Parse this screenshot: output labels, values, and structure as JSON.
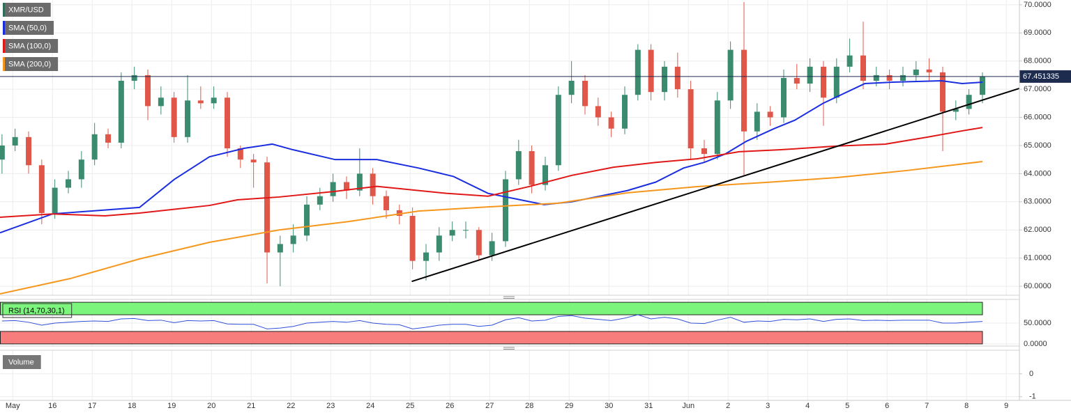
{
  "chart_data": {
    "type": "candlestick",
    "xlim": [
      -0.32,
      25.33
    ],
    "xticks": [
      {
        "value": 0,
        "label": "May"
      },
      {
        "value": 1,
        "label": "16"
      },
      {
        "value": 2,
        "label": "17"
      },
      {
        "value": 3,
        "label": "18"
      },
      {
        "value": 4,
        "label": "19"
      },
      {
        "value": 5,
        "label": "20"
      },
      {
        "value": 6,
        "label": "21"
      },
      {
        "value": 7,
        "label": "22"
      },
      {
        "value": 8,
        "label": "23"
      },
      {
        "value": 9,
        "label": "24"
      },
      {
        "value": 10,
        "label": "25"
      },
      {
        "value": 11,
        "label": "26"
      },
      {
        "value": 12,
        "label": "27"
      },
      {
        "value": 13,
        "label": "28"
      },
      {
        "value": 14,
        "label": "29"
      },
      {
        "value": 15,
        "label": "30"
      },
      {
        "value": 16,
        "label": "31"
      },
      {
        "value": 17,
        "label": "Jun"
      },
      {
        "value": 18,
        "label": "2"
      },
      {
        "value": 19,
        "label": "3"
      },
      {
        "value": 20,
        "label": "4"
      },
      {
        "value": 21,
        "label": "5"
      },
      {
        "value": 22,
        "label": "6"
      },
      {
        "value": 23,
        "label": "7"
      },
      {
        "value": 24,
        "label": "8"
      },
      {
        "value": 25,
        "label": "9"
      }
    ],
    "x": [
      -0.27,
      0.06,
      0.4,
      0.73,
      1.06,
      1.4,
      1.73,
      2.06,
      2.4,
      2.73,
      3.06,
      3.4,
      3.73,
      4.06,
      4.4,
      4.73,
      5.06,
      5.4,
      5.73,
      6.06,
      6.4,
      6.73,
      7.06,
      7.4,
      7.73,
      8.06,
      8.4,
      8.73,
      9.06,
      9.4,
      9.73,
      10.06,
      10.4,
      10.73,
      11.06,
      11.4,
      11.73,
      12.06,
      12.4,
      12.73,
      13.06,
      13.4,
      13.73,
      14.06,
      14.4,
      14.73,
      15.06,
      15.4,
      15.73,
      16.06,
      16.4,
      16.73,
      17.06,
      17.4,
      17.73,
      18.06,
      18.4,
      18.73,
      19.06,
      19.4,
      19.73,
      20.06,
      20.4,
      20.73,
      21.06,
      21.4,
      21.73,
      22.06,
      22.4,
      22.73,
      23.06,
      23.4,
      23.73,
      24.06,
      24.4
    ],
    "ylim": [
      59.68,
      70.17
    ],
    "yticks": [
      {
        "value": 60,
        "label": "60.0000"
      },
      {
        "value": 61,
        "label": "61.0000"
      },
      {
        "value": 62,
        "label": "62.0000"
      },
      {
        "value": 63,
        "label": "63.0000"
      },
      {
        "value": 64,
        "label": "64.0000"
      },
      {
        "value": 65,
        "label": "65.0000"
      },
      {
        "value": 66,
        "label": "66.0000"
      },
      {
        "value": 67,
        "label": "67.0000"
      },
      {
        "value": 68,
        "label": "68.0000"
      },
      {
        "value": 69,
        "label": "69.0000"
      },
      {
        "value": 70,
        "label": "70.0000"
      }
    ],
    "grid": true,
    "series": [
      {
        "name": "XMR/USD",
        "color": "#2f6e5a",
        "up_color": "#3b8c6e",
        "down_color": "#e0574a",
        "open": [
          64.5,
          65.0,
          65.3,
          64.3,
          62.6,
          63.5,
          63.8,
          64.5,
          65.4,
          65.1,
          67.3,
          67.5,
          66.4,
          66.7,
          65.3,
          66.6,
          66.5,
          66.7,
          64.9,
          64.5,
          64.4,
          61.2,
          61.5,
          61.8,
          62.9,
          63.2,
          63.7,
          63.4,
          64.0,
          63.2,
          62.7,
          62.5,
          60.9,
          61.2,
          61.8,
          62.0,
          62.0,
          61.1,
          61.6,
          63.8,
          64.8,
          63.6,
          64.3,
          66.8,
          67.3,
          66.4,
          66.0,
          65.6,
          66.8,
          68.4,
          66.9,
          67.8,
          67.0,
          64.9,
          64.7,
          66.6,
          68.4,
          65.5,
          66.2,
          66.0,
          67.4,
          67.2,
          67.8,
          66.7,
          67.8,
          68.2,
          67.3,
          67.5,
          67.3,
          67.5,
          67.7,
          67.6,
          66.2,
          66.3,
          66.8
        ],
        "high": [
          65.4,
          65.6,
          65.5,
          64.5,
          63.8,
          64.1,
          64.8,
          65.8,
          65.6,
          67.6,
          67.8,
          67.7,
          67.1,
          66.9,
          67.5,
          67.1,
          67.1,
          66.9,
          65.0,
          64.7,
          64.6,
          61.8,
          62.2,
          63.2,
          63.5,
          64.0,
          63.9,
          64.9,
          64.2,
          63.4,
          62.9,
          62.8,
          61.5,
          62.1,
          62.3,
          62.3,
          62.1,
          61.9,
          64.1,
          65.2,
          65.0,
          64.6,
          67.1,
          68.0,
          67.5,
          66.7,
          66.2,
          67.1,
          68.6,
          68.6,
          68.0,
          68.3,
          67.3,
          65.2,
          66.9,
          68.7,
          70.1,
          66.5,
          66.4,
          67.7,
          67.9,
          68.1,
          68.0,
          68.1,
          68.8,
          69.4,
          67.8,
          67.7,
          67.8,
          68.0,
          68.1,
          67.8,
          66.6,
          67.0,
          67.6
        ],
        "low": [
          64.0,
          64.8,
          64.0,
          62.2,
          62.4,
          63.3,
          63.5,
          64.3,
          64.9,
          64.9,
          67.0,
          65.9,
          66.1,
          65.1,
          65.1,
          66.3,
          66.3,
          64.6,
          64.2,
          63.5,
          60.1,
          60.0,
          61.2,
          61.6,
          62.7,
          63.0,
          63.1,
          63.2,
          62.9,
          62.4,
          62.2,
          60.6,
          60.2,
          60.9,
          61.6,
          61.7,
          60.9,
          60.9,
          61.4,
          63.6,
          63.3,
          63.4,
          64.1,
          66.5,
          66.1,
          65.7,
          65.3,
          65.4,
          66.6,
          66.6,
          66.6,
          66.7,
          64.5,
          64.4,
          64.5,
          66.3,
          63.9,
          65.2,
          65.7,
          65.8,
          67.0,
          66.9,
          65.7,
          66.5,
          67.6,
          67.0,
          67.1,
          67.0,
          67.1,
          67.3,
          67.3,
          64.8,
          65.9,
          66.1,
          66.5
        ],
        "close": [
          65.0,
          65.3,
          64.3,
          62.6,
          63.5,
          63.8,
          64.5,
          65.4,
          65.1,
          67.3,
          67.5,
          66.4,
          66.7,
          65.3,
          66.6,
          66.5,
          66.7,
          64.9,
          64.5,
          64.4,
          61.2,
          61.5,
          61.8,
          62.9,
          63.2,
          63.7,
          63.4,
          64.0,
          63.2,
          62.7,
          62.5,
          60.9,
          61.2,
          61.8,
          62.0,
          62.0,
          61.1,
          61.6,
          63.8,
          64.8,
          63.6,
          64.3,
          66.8,
          67.3,
          66.4,
          66.0,
          65.6,
          66.8,
          68.4,
          66.9,
          67.8,
          67.0,
          64.9,
          64.7,
          66.6,
          68.4,
          65.5,
          66.2,
          66.0,
          67.4,
          67.2,
          67.8,
          66.7,
          67.8,
          68.2,
          67.3,
          67.5,
          67.3,
          67.5,
          67.7,
          67.6,
          66.2,
          66.3,
          66.8,
          67.45
        ]
      },
      {
        "name": "SMA (50,0)",
        "color": "#1a2ee0",
        "x": [
          -0.32,
          1.0,
          3.19,
          4.07,
          4.95,
          5.82,
          6.53,
          7.05,
          8.11,
          9.16,
          10.21,
          11.09,
          11.96,
          12.67,
          13.37,
          14.07,
          14.77,
          15.47,
          16.18,
          16.88,
          17.4,
          17.93,
          18.46,
          19.16,
          19.68,
          20.39,
          21.44,
          22.14,
          23.37,
          23.89,
          24.4
        ],
        "values": [
          61.9,
          62.57,
          62.8,
          63.8,
          64.6,
          64.9,
          65.05,
          64.85,
          64.5,
          64.5,
          64.2,
          63.9,
          63.3,
          63.1,
          62.9,
          63.0,
          63.2,
          63.4,
          63.7,
          64.2,
          64.4,
          64.7,
          65.15,
          65.6,
          65.9,
          66.5,
          67.2,
          67.25,
          67.3,
          67.2,
          67.25
        ]
      },
      {
        "name": "SMA (100,0)",
        "color": "#e01818",
        "x": [
          -0.32,
          1.0,
          2.32,
          3.19,
          4.95,
          5.65,
          6.7,
          8.11,
          9.16,
          9.86,
          10.91,
          11.96,
          13.02,
          14.07,
          15.12,
          16.18,
          17.23,
          18.28,
          19.33,
          20.74,
          21.96,
          23.02,
          23.89,
          24.4
        ],
        "values": [
          62.45,
          62.57,
          62.5,
          62.6,
          62.87,
          63.07,
          63.17,
          63.37,
          63.55,
          63.45,
          63.3,
          63.2,
          63.55,
          63.94,
          64.23,
          64.4,
          64.53,
          64.78,
          64.85,
          64.98,
          65.05,
          65.3,
          65.52,
          65.64
        ]
      },
      {
        "name": "SMA (200,0)",
        "color": "#f5971d",
        "x": [
          -0.32,
          1.44,
          3.19,
          4.95,
          6.7,
          8.46,
          10.21,
          11.96,
          13.72,
          15.47,
          17.23,
          18.98,
          20.74,
          22.49,
          24.4
        ],
        "values": [
          59.73,
          60.27,
          60.97,
          61.56,
          62.0,
          62.3,
          62.67,
          62.82,
          62.95,
          63.32,
          63.54,
          63.69,
          63.86,
          64.11,
          64.43
        ]
      }
    ],
    "last_price": 67.451335,
    "last_price_color": "#1d2b4f",
    "trendline": {
      "x": [
        10.04,
        25.33
      ],
      "values": [
        60.17,
        67.03
      ],
      "color": "#000000"
    },
    "rsi": {
      "name": "RSI (14,70,30,1)",
      "color": "#3050d8",
      "values": [
        55,
        56,
        52,
        45,
        50,
        52,
        54,
        55,
        54,
        60,
        61,
        56,
        57,
        51,
        56,
        55,
        56,
        48,
        47,
        47,
        36,
        38,
        42,
        50,
        52,
        54,
        52,
        56,
        50,
        47,
        46,
        36,
        40,
        45,
        47,
        47,
        42,
        45,
        58,
        63,
        55,
        57,
        66,
        68,
        62,
        59,
        56,
        62,
        70,
        60,
        64,
        60,
        50,
        49,
        57,
        64,
        52,
        55,
        54,
        59,
        58,
        60,
        54,
        59,
        60,
        56,
        57,
        56,
        57,
        57,
        57,
        50,
        50,
        52,
        54
      ],
      "ylim": [
        -5.2,
        106.9
      ],
      "yticks": [
        {
          "value": 50,
          "label": "50.0000"
        },
        {
          "value": 0,
          "label": "0.0000"
        }
      ],
      "bands": [
        {
          "range": [
            70,
            100
          ],
          "color": "#7cf57c"
        },
        {
          "range": [
            0,
            30
          ],
          "color": "#f77c7c"
        }
      ]
    },
    "volume": {
      "name": "Volume",
      "ylim": [
        -1.16,
        1.03
      ],
      "yticks": [
        0,
        -1
      ]
    }
  }
}
